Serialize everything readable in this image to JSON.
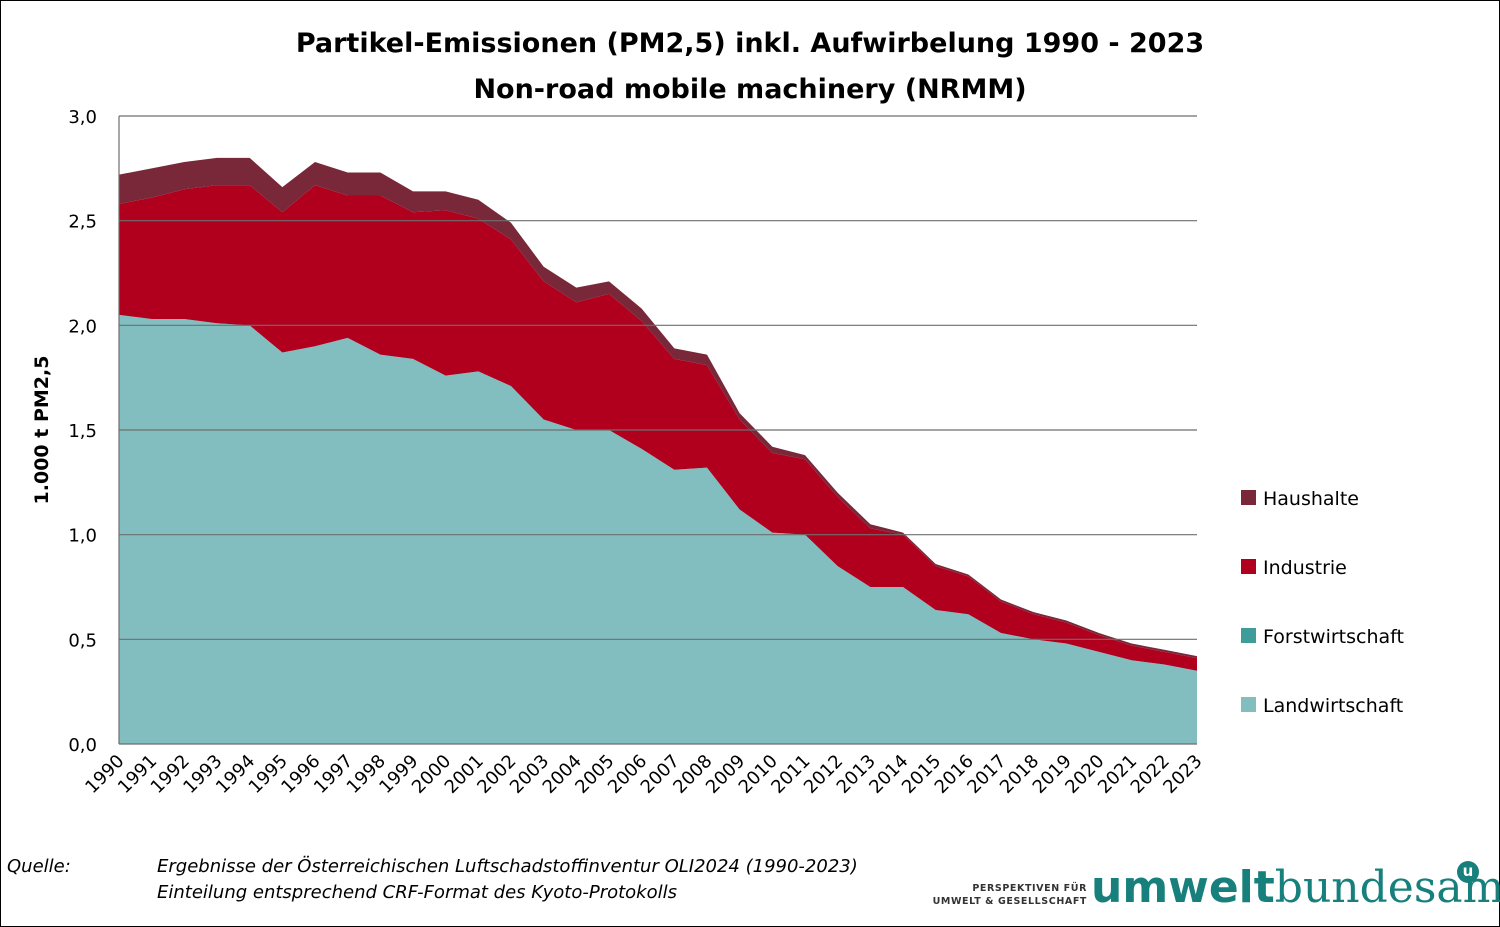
{
  "chart_data": {
    "type": "area",
    "stacked": true,
    "title": "Partikel-Emissionen (PM2,5) inkl. Aufwirbelung 1990 - 2023",
    "subtitle": "Non-road mobile machinery (NRMM)",
    "ylabel": "1.000 t  PM2,5",
    "xlabel": "",
    "ylim": [
      0,
      3
    ],
    "yticks": [
      "0,0",
      "0,5",
      "1,0",
      "1,5",
      "2,0",
      "2,5",
      "3,0"
    ],
    "ytick_values": [
      0,
      0.5,
      1,
      1.5,
      2,
      2.5,
      3
    ],
    "grid": true,
    "legend_position": "right",
    "categories": [
      "1990",
      "1991",
      "1992",
      "1993",
      "1994",
      "1995",
      "1996",
      "1997",
      "1998",
      "1999",
      "2000",
      "2001",
      "2002",
      "2003",
      "2004",
      "2005",
      "2006",
      "2007",
      "2008",
      "2009",
      "2010",
      "2011",
      "2012",
      "2013",
      "2014",
      "2015",
      "2016",
      "2017",
      "2018",
      "2019",
      "2020",
      "2021",
      "2022",
      "2023"
    ],
    "series": [
      {
        "name": "Landwirtschaft",
        "color": "#82bec0",
        "values": [
          2.05,
          2.03,
          2.03,
          2.01,
          2.0,
          1.87,
          1.9,
          1.94,
          1.86,
          1.84,
          1.76,
          1.78,
          1.71,
          1.55,
          1.5,
          1.5,
          1.41,
          1.31,
          1.32,
          1.12,
          1.01,
          1.0,
          0.85,
          0.75,
          0.75,
          0.64,
          0.62,
          0.53,
          0.5,
          0.48,
          0.44,
          0.4,
          0.38,
          0.35
        ]
      },
      {
        "name": "Forstwirtschaft",
        "color": "#3e9c9b",
        "values": [
          0,
          0,
          0,
          0,
          0,
          0,
          0,
          0,
          0,
          0,
          0,
          0,
          0,
          0,
          0,
          0,
          0,
          0,
          0,
          0,
          0,
          0,
          0,
          0,
          0,
          0,
          0,
          0,
          0,
          0,
          0,
          0,
          0,
          0
        ]
      },
      {
        "name": "Industrie",
        "color": "#b0001e",
        "values": [
          0.53,
          0.58,
          0.62,
          0.66,
          0.67,
          0.67,
          0.77,
          0.68,
          0.76,
          0.7,
          0.79,
          0.73,
          0.7,
          0.66,
          0.61,
          0.65,
          0.61,
          0.53,
          0.49,
          0.43,
          0.38,
          0.36,
          0.33,
          0.28,
          0.25,
          0.21,
          0.18,
          0.15,
          0.12,
          0.1,
          0.08,
          0.07,
          0.06,
          0.06
        ]
      },
      {
        "name": "Haushalte",
        "color": "#782838",
        "values": [
          0.14,
          0.14,
          0.13,
          0.13,
          0.13,
          0.12,
          0.11,
          0.11,
          0.11,
          0.1,
          0.09,
          0.09,
          0.08,
          0.07,
          0.07,
          0.06,
          0.06,
          0.05,
          0.05,
          0.03,
          0.03,
          0.02,
          0.02,
          0.02,
          0.01,
          0.01,
          0.01,
          0.01,
          0.01,
          0.01,
          0.01,
          0.01,
          0.01,
          0.01
        ]
      }
    ],
    "legend_order": [
      "Haushalte",
      "Industrie",
      "Forstwirtschaft",
      "Landwirtschaft"
    ]
  },
  "footer": {
    "source_label": "Quelle:",
    "source_line1": "Ergebnisse der Österreichischen Luftschadstoffinventur OLI2024 (1990-2023)",
    "source_line2": "Einteilung entsprechend CRF-Format des Kyoto-Protokolls"
  },
  "logo": {
    "tagline_line1": "PERSPEKTIVEN FÜR",
    "tagline_line2": "UMWELT & GESELLSCHAFT",
    "word_bold": "umwelt",
    "word_regular": "bundesamt",
    "badge": "u"
  }
}
